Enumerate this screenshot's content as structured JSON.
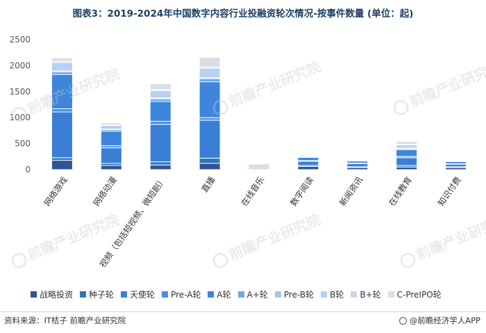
{
  "title": "图表3：2019-2024年中国数字内容行业投融资轮次情况-按事件数量 (单位：起)",
  "source": "资料来源：IT桔子 前瞻产业研究院",
  "brand": "@前瞻经济学人APP",
  "watermark_text": "前瞻产业研究院",
  "chart_data": {
    "type": "bar",
    "stacked": true,
    "categories": [
      "网络游戏",
      "网络动漫",
      "视频（包括短视频、微短剧）",
      "直播",
      "在线音乐",
      "数字阅读",
      "新闻资讯",
      "在线教育",
      "知识付费"
    ],
    "ylim": [
      0,
      2500
    ],
    "yticks": [
      0,
      500,
      1000,
      1500,
      2000,
      2500
    ],
    "grid": false,
    "legend_position": "bottom",
    "series": [
      {
        "name": "战略投资",
        "color": "#2f5597",
        "values": [
          180,
          80,
          90,
          120,
          0,
          60,
          40,
          50,
          40
        ]
      },
      {
        "name": "种子轮",
        "color": "#2e75b6",
        "values": [
          50,
          40,
          60,
          100,
          0,
          20,
          15,
          30,
          15
        ]
      },
      {
        "name": "天使轮",
        "color": "#3a7fd6",
        "values": [
          880,
          300,
          720,
          730,
          0,
          80,
          60,
          150,
          50
        ]
      },
      {
        "name": "Pre-A轮",
        "color": "#4a8fe0",
        "values": [
          60,
          40,
          60,
          50,
          0,
          15,
          10,
          25,
          10
        ]
      },
      {
        "name": "A轮",
        "color": "#3d86dc",
        "values": [
          660,
          280,
          380,
          690,
          0,
          60,
          40,
          130,
          40
        ]
      },
      {
        "name": "A+轮",
        "color": "#6fa8e8",
        "values": [
          50,
          30,
          50,
          60,
          0,
          10,
          8,
          20,
          8
        ]
      },
      {
        "name": "Pre-B轮",
        "color": "#a7c6ef",
        "values": [
          20,
          10,
          20,
          20,
          0,
          5,
          4,
          10,
          4
        ]
      },
      {
        "name": "B轮",
        "color": "#b8d0f2",
        "values": [
          160,
          70,
          140,
          180,
          0,
          20,
          15,
          60,
          15
        ]
      },
      {
        "name": "B+轮",
        "color": "#c9d7ea",
        "values": [
          20,
          10,
          20,
          20,
          0,
          5,
          4,
          10,
          4
        ]
      },
      {
        "name": "C-PreIPO轮",
        "color": "#d9dee6",
        "values": [
          70,
          40,
          110,
          190,
          110,
          15,
          14,
          55,
          14
        ]
      }
    ]
  }
}
